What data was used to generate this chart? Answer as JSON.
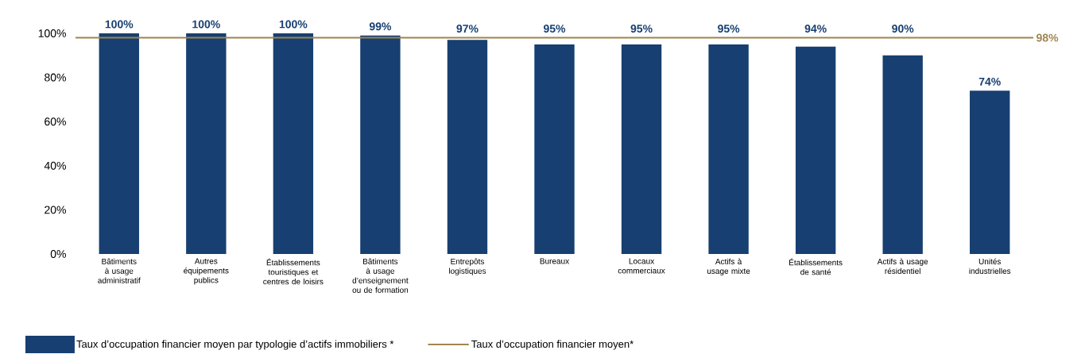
{
  "chart_data": {
    "type": "bar",
    "categories": [
      "Bâtiments à usage administratif",
      "Autres équipements publics",
      "Établissements touristiques et centres de loisirs",
      "Bâtiments à usage d’enseignement ou de formation",
      "Entrepôts logistiques",
      "Bureaux",
      "Locaux commerciaux",
      "Actifs à usage mixte",
      "Établissements de santé",
      "Actifs à usage résidentiel",
      "Unités industrielles"
    ],
    "series": [
      {
        "name": "Taux d’occupation financier moyen par typologie d’actifs immobiliers *",
        "color": "#173f71",
        "values": [
          100,
          100,
          100,
          99,
          97,
          95,
          95,
          95,
          94,
          90,
          74
        ],
        "value_labels": [
          "100%",
          "100%",
          "100%",
          "99%",
          "97%",
          "95%",
          "95%",
          "95%",
          "94%",
          "90%",
          "74%"
        ]
      }
    ],
    "ylim": [
      0,
      100
    ],
    "yticks": [
      {
        "value": 0,
        "label": "0%"
      },
      {
        "value": 20,
        "label": "20%"
      },
      {
        "value": 40,
        "label": "40%"
      },
      {
        "value": 60,
        "label": "60%"
      },
      {
        "value": 80,
        "label": "80%"
      },
      {
        "value": 100,
        "label": "100%"
      }
    ],
    "ref_lines": [
      {
        "axis": "y",
        "value": 98,
        "label": "Taux d’occupation financier moyen*",
        "color": "#a0844f"
      }
    ],
    "annotations": [
      "98%"
    ],
    "grid": false,
    "legend": "bottom"
  }
}
